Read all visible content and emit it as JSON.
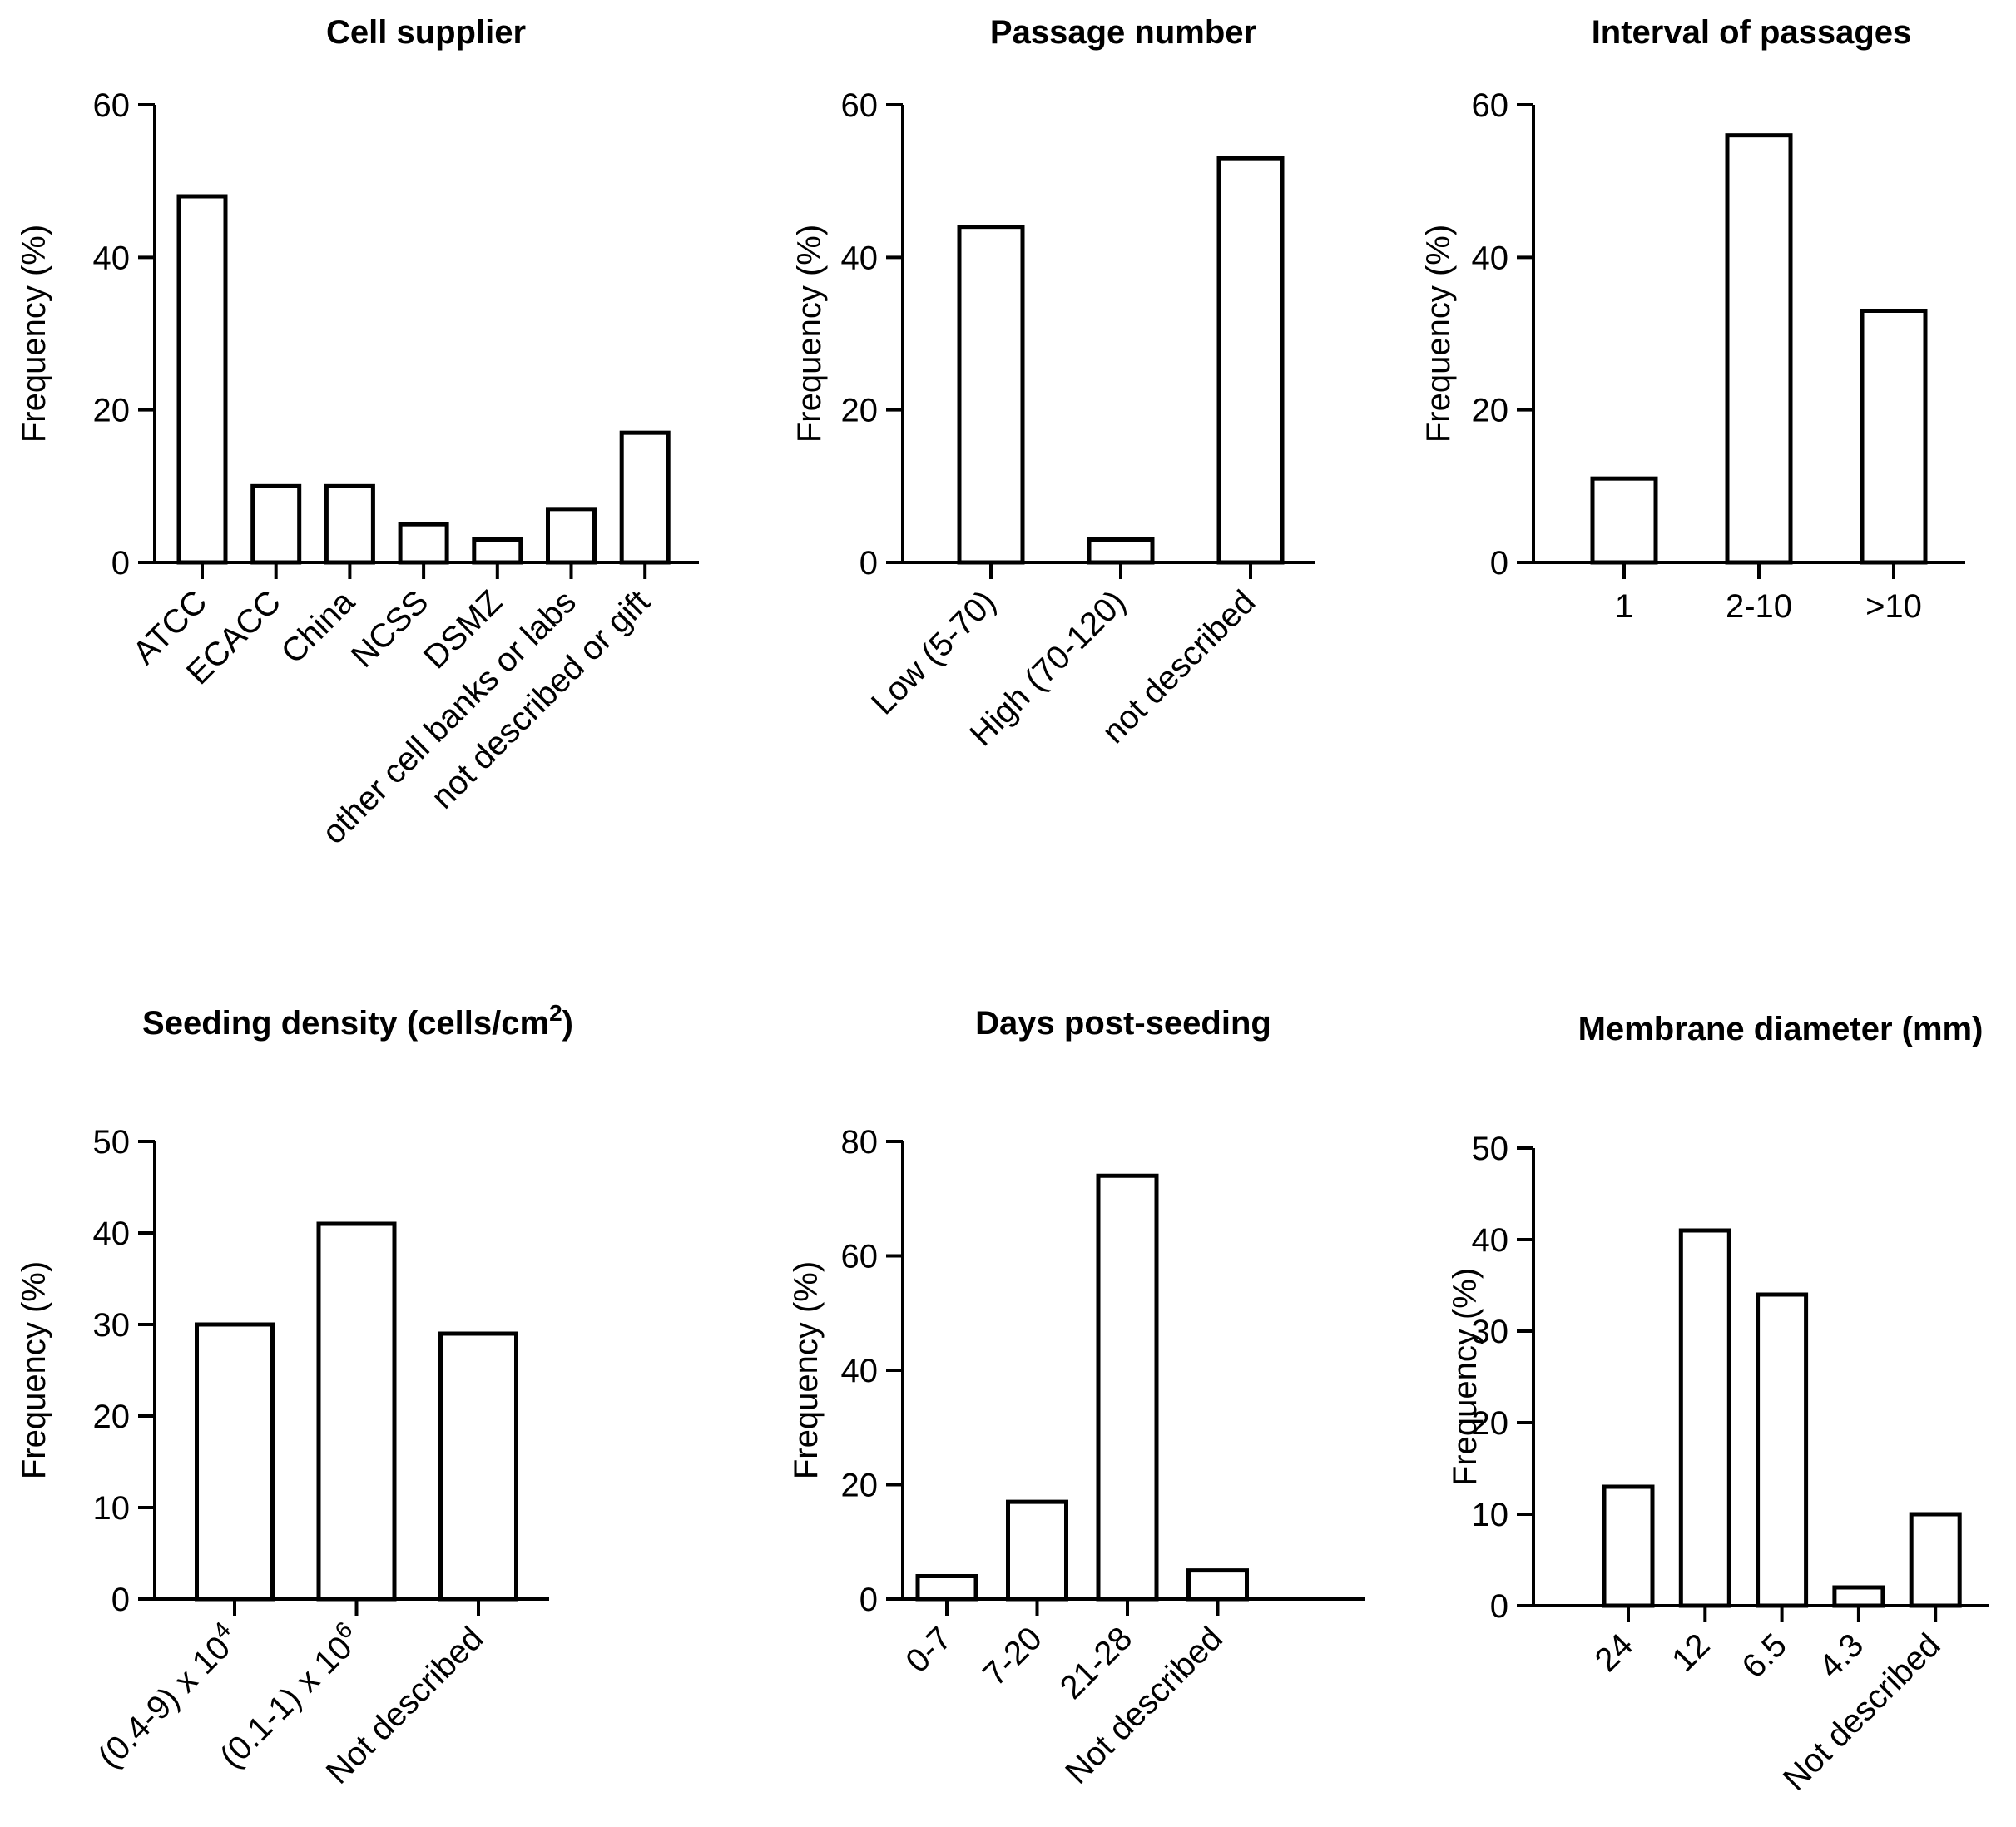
{
  "chart_data": [
    {
      "type": "bar",
      "title": "Cell supplier",
      "ylabel": "Frequency (%)",
      "xlabel": "",
      "categories": [
        "ATCC",
        "ECACC",
        "China",
        "NCSS",
        "DSMZ",
        "other cell banks or labs",
        "not described or gift"
      ],
      "values": [
        48,
        10,
        10,
        5,
        3,
        7,
        17
      ],
      "ylim": [
        0,
        60
      ],
      "yticks": [
        0,
        20,
        40,
        60
      ],
      "grid": false
    },
    {
      "type": "bar",
      "title": "Passage number",
      "ylabel": "Frequency (%)",
      "xlabel": "",
      "categories": [
        "Low (5-70)",
        "High (70-120)",
        "not described"
      ],
      "values": [
        44,
        3,
        53
      ],
      "ylim": [
        0,
        60
      ],
      "yticks": [
        0,
        20,
        40,
        60
      ],
      "grid": false
    },
    {
      "type": "bar",
      "title": "Interval of passages",
      "ylabel": "Frequency (%)",
      "xlabel": "",
      "categories": [
        "1",
        "2-10",
        ">10"
      ],
      "values": [
        11,
        56,
        33
      ],
      "ylim": [
        0,
        60
      ],
      "yticks": [
        0,
        20,
        40,
        60
      ],
      "grid": false
    },
    {
      "type": "bar",
      "title": "Seeding density (cells/cm",
      "title_sup": "2",
      "title_end": ")",
      "ylabel": "Frequency (%)",
      "xlabel": "",
      "categories": [
        "(0.4-9) x 10",
        "(0.1-1) x 10",
        "Not described"
      ],
      "category_sups": [
        "4",
        "6",
        ""
      ],
      "values": [
        30,
        41,
        29
      ],
      "ylim": [
        0,
        50
      ],
      "yticks": [
        0,
        10,
        20,
        30,
        40,
        50
      ],
      "grid": false
    },
    {
      "type": "bar",
      "title": "Days post-seeding",
      "ylabel": "Frequency (%)",
      "xlabel": "",
      "categories": [
        "0-7",
        "7-20",
        "21-28",
        "Not described"
      ],
      "values": [
        4,
        17,
        74,
        5
      ],
      "ylim": [
        0,
        80
      ],
      "yticks": [
        0,
        20,
        40,
        60,
        80
      ],
      "grid": false
    },
    {
      "type": "bar",
      "title": "Membrane diameter (mm)",
      "ylabel": "Frequency (%)",
      "xlabel": "",
      "categories": [
        "24",
        "12",
        "6.5",
        "4.3",
        "Not described"
      ],
      "values": [
        13,
        41,
        34,
        2,
        10
      ],
      "ylim": [
        0,
        50
      ],
      "yticks": [
        0,
        10,
        20,
        30,
        40,
        50
      ],
      "grid": false
    }
  ]
}
